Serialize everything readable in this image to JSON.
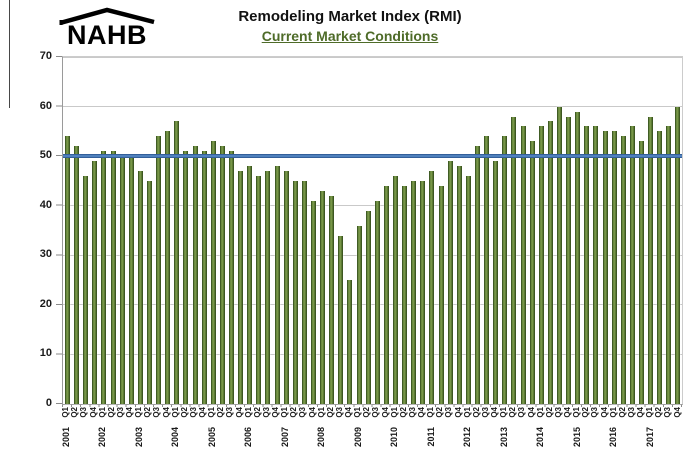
{
  "header": {
    "logo_text": "NAHB",
    "title": "Remodeling Market Index (RMI)",
    "subtitle": "Current Market Conditions"
  },
  "chart_data": {
    "type": "bar",
    "title": "Remodeling Market Index (RMI)",
    "subtitle": "Current Market Conditions",
    "categories": [
      "2001 Q1",
      "2001 Q2",
      "2001 Q3",
      "2001 Q4",
      "2002 Q1",
      "2002 Q2",
      "2002 Q3",
      "2002 Q4",
      "2003 Q1",
      "2003 Q2",
      "2003 Q3",
      "2003 Q4",
      "2004 Q1",
      "2004 Q2",
      "2004 Q3",
      "2004 Q4",
      "2005 Q1",
      "2005 Q2",
      "2005 Q3",
      "2005 Q4",
      "2006 Q1",
      "2006 Q2",
      "2006 Q3",
      "2006 Q4",
      "2007 Q1",
      "2007 Q2",
      "2007 Q3",
      "2007 Q4",
      "2008 Q1",
      "2008 Q2",
      "2008 Q3",
      "2008 Q4",
      "2009 Q1",
      "2009 Q2",
      "2009 Q3",
      "2009 Q4",
      "2010 Q1",
      "2010 Q2",
      "2010 Q3",
      "2010 Q4",
      "2011 Q1",
      "2011 Q2",
      "2011 Q3",
      "2011 Q4",
      "2012 Q1",
      "2012 Q2",
      "2012 Q3",
      "2012 Q4",
      "2013 Q1",
      "2013 Q2",
      "2013 Q3",
      "2013 Q4",
      "2014 Q1",
      "2014 Q2",
      "2014 Q3",
      "2014 Q4",
      "2015 Q1",
      "2015 Q2",
      "2015 Q3",
      "2015 Q4",
      "2016 Q1",
      "2016 Q2",
      "2016 Q3",
      "2016 Q4",
      "2017 Q1",
      "2017 Q2",
      "2017 Q3",
      "2017 Q4"
    ],
    "values": [
      54,
      52,
      46,
      49,
      51,
      51,
      50,
      50,
      47,
      45,
      54,
      55,
      57,
      51,
      52,
      51,
      53,
      52,
      51,
      47,
      48,
      46,
      47,
      48,
      47,
      45,
      45,
      41,
      43,
      42,
      34,
      25,
      36,
      39,
      41,
      44,
      46,
      44,
      45,
      45,
      47,
      44,
      49,
      48,
      46,
      52,
      54,
      49,
      54,
      58,
      56,
      53,
      56,
      57,
      60,
      58,
      59,
      56,
      56,
      55,
      55,
      54,
      56,
      53,
      58,
      55,
      56,
      60
    ],
    "ylim": [
      0,
      70
    ],
    "yticks": [
      0,
      10,
      20,
      30,
      40,
      50,
      60,
      70
    ],
    "grid": true,
    "legend": false,
    "bar_color": "#5a7a33",
    "reference_line": {
      "value": 50,
      "color": "#5081bd"
    }
  }
}
